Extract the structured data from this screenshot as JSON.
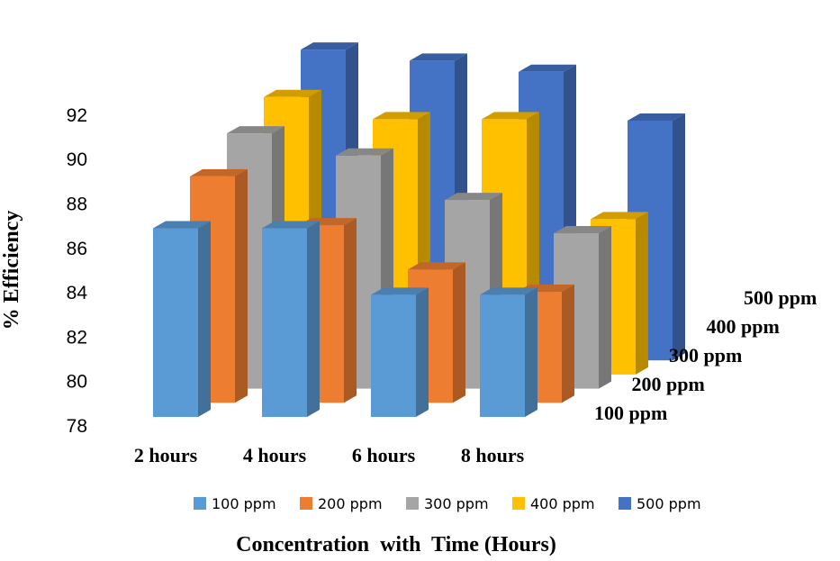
{
  "chart_data": {
    "type": "bar",
    "title": "",
    "xlabel": "Concentration  with  Time (Hours)",
    "ylabel": "% Efficiency",
    "categories": [
      "2 hours",
      "4 hours",
      "6 hours",
      "8 hours"
    ],
    "depth_labels": [
      "100 ppm",
      "200 ppm",
      "300 ppm",
      "400 ppm",
      "500 ppm"
    ],
    "y_ticks": [
      "78",
      "80",
      "82",
      "84",
      "86",
      "88",
      "90",
      "92"
    ],
    "ylim": [
      78,
      94
    ],
    "legend_position": "bottom",
    "series": [
      {
        "name": "100 ppm",
        "color": "#5B9BD5",
        "values": [
          86.5,
          86.5,
          83.5,
          83.5
        ]
      },
      {
        "name": "200 ppm",
        "color": "#ED7D31",
        "values": [
          88.2,
          86.0,
          84.0,
          83.0
        ]
      },
      {
        "name": "300 ppm",
        "color": "#A5A5A5",
        "values": [
          89.5,
          88.5,
          86.5,
          85.0
        ]
      },
      {
        "name": "400 ppm",
        "color": "#FFC000",
        "values": [
          90.5,
          89.5,
          89.5,
          85.0
        ]
      },
      {
        "name": "500 ppm",
        "color": "#4472C4",
        "values": [
          92.0,
          91.5,
          91.0,
          88.8
        ]
      }
    ]
  }
}
